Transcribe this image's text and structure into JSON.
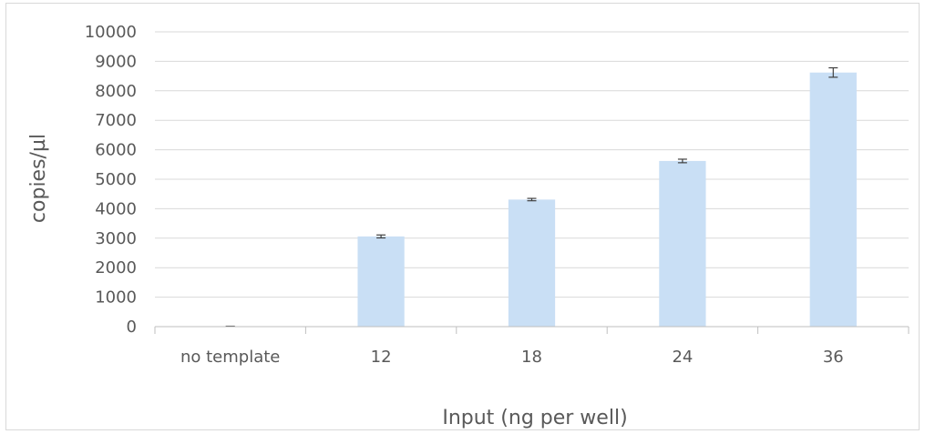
{
  "chart_data": {
    "type": "bar",
    "categories": [
      "no template",
      "12",
      "18",
      "24",
      "36"
    ],
    "series": [
      {
        "values": [
          10,
          3060,
          4310,
          5620,
          8620
        ],
        "errors": [
          5,
          50,
          40,
          60,
          160
        ]
      }
    ],
    "xlabel": "Input (ng per well)",
    "ylabel": "copies/µl",
    "ylim": [
      0,
      10000
    ],
    "yticks": [
      0,
      1000,
      2000,
      3000,
      4000,
      5000,
      6000,
      7000,
      8000,
      9000,
      10000
    ],
    "ytick_labels": [
      "0",
      "1000",
      "2000",
      "3000",
      "4000",
      "5000",
      "6000",
      "7000",
      "8000",
      "9000",
      "10000"
    ],
    "grid": true,
    "legend": false,
    "colors": {
      "bar": "#c9dff5",
      "error_bar": "#404040",
      "gridline": "#d9d9d9",
      "axis": "#bfbfbf",
      "text": "#595959"
    }
  }
}
